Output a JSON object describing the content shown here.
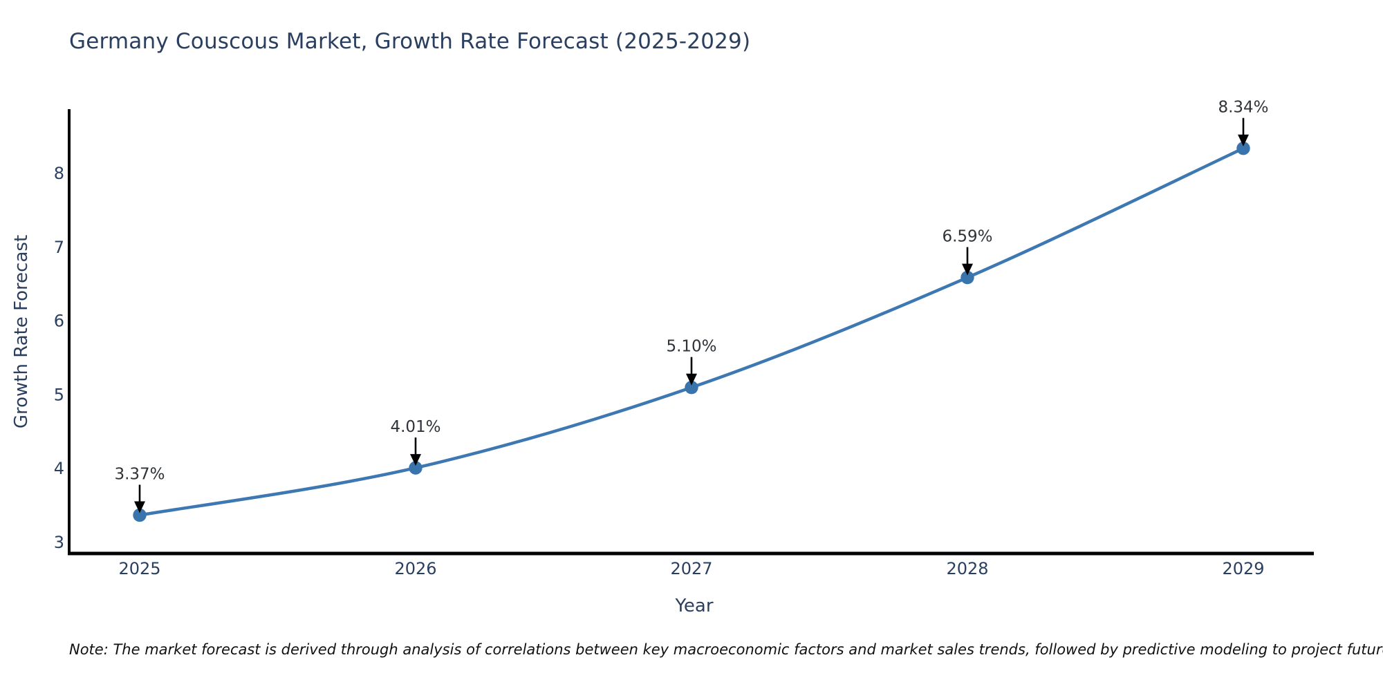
{
  "title": "Germany Couscous Market, Growth Rate Forecast (2025-2029)",
  "note": "Note: The market forecast is derived through analysis of correlations between key macroeconomic factors and market sales trends, followed by predictive modeling to project future sales.",
  "chart_data": {
    "type": "line",
    "title": "Germany Couscous Market, Growth Rate Forecast (2025-2029)",
    "x": [
      2025,
      2026,
      2027,
      2028,
      2029
    ],
    "series": [
      {
        "name": "Growth Rate Forecast",
        "values": [
          3.37,
          4.01,
          5.1,
          6.59,
          8.34
        ]
      }
    ],
    "point_labels": [
      "3.37%",
      "4.01%",
      "5.10%",
      "6.59%",
      "8.34%"
    ],
    "xlabel": "Year",
    "ylabel": "Growth Rate Forecast",
    "yticks": [
      3,
      4,
      5,
      6,
      7,
      8
    ],
    "ylim": [
      2.85,
      8.86
    ],
    "xlim": [
      2024.74,
      2029.28
    ],
    "grid": false,
    "legend_position": "none",
    "line_shape": "spline",
    "marker_style": "circle",
    "annotation_style": "black-down-arrow",
    "colors": {
      "line": "#3d78b2",
      "marker": "#3a74ac",
      "axis": "#000000",
      "title_text": "#2a3f5f",
      "tick_text": "#2a3f5f",
      "axis_label_text": "#2a3f5f",
      "annotation_text": "#2f3338",
      "annotation_arrow": "#000000",
      "background": "#ffffff"
    }
  }
}
